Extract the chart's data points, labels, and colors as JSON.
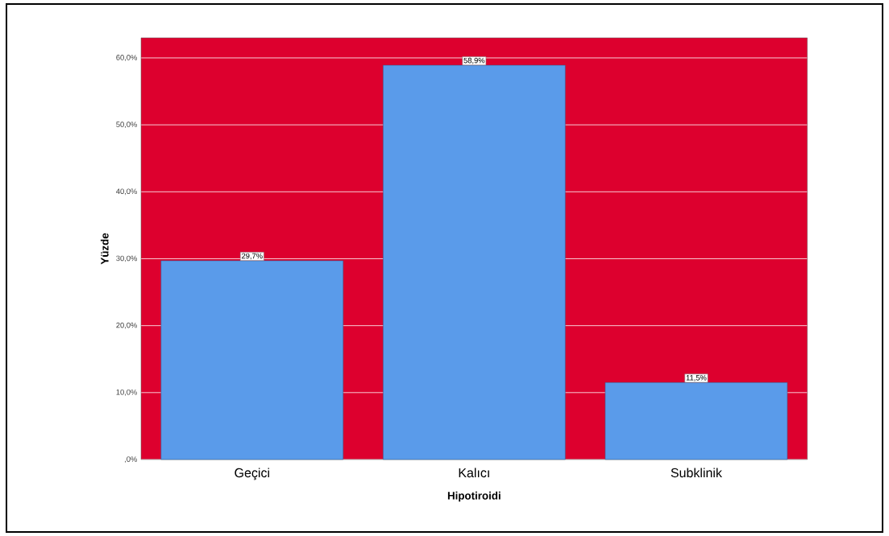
{
  "chart_data": {
    "type": "bar",
    "xlabel": "Hipotiroidi",
    "ylabel": "Yüzde",
    "categories": [
      "Geçici",
      "Kalıcı",
      "Subklinik"
    ],
    "values": [
      29.7,
      58.9,
      11.5
    ],
    "value_labels": [
      "29,7%",
      "58,9%",
      "11,5%"
    ],
    "color": "#5a9bea",
    "ylim": [
      0,
      63
    ],
    "yticks": [
      {
        "value": 0,
        "label": ",0%"
      },
      {
        "value": 10,
        "label": "10,0%"
      },
      {
        "value": 20,
        "label": "20,0%"
      },
      {
        "value": 30,
        "label": "30,0%"
      },
      {
        "value": 40,
        "label": "40,0%"
      },
      {
        "value": 50,
        "label": "50,0%"
      },
      {
        "value": 60,
        "label": "60,0%"
      }
    ],
    "grid": "y"
  }
}
